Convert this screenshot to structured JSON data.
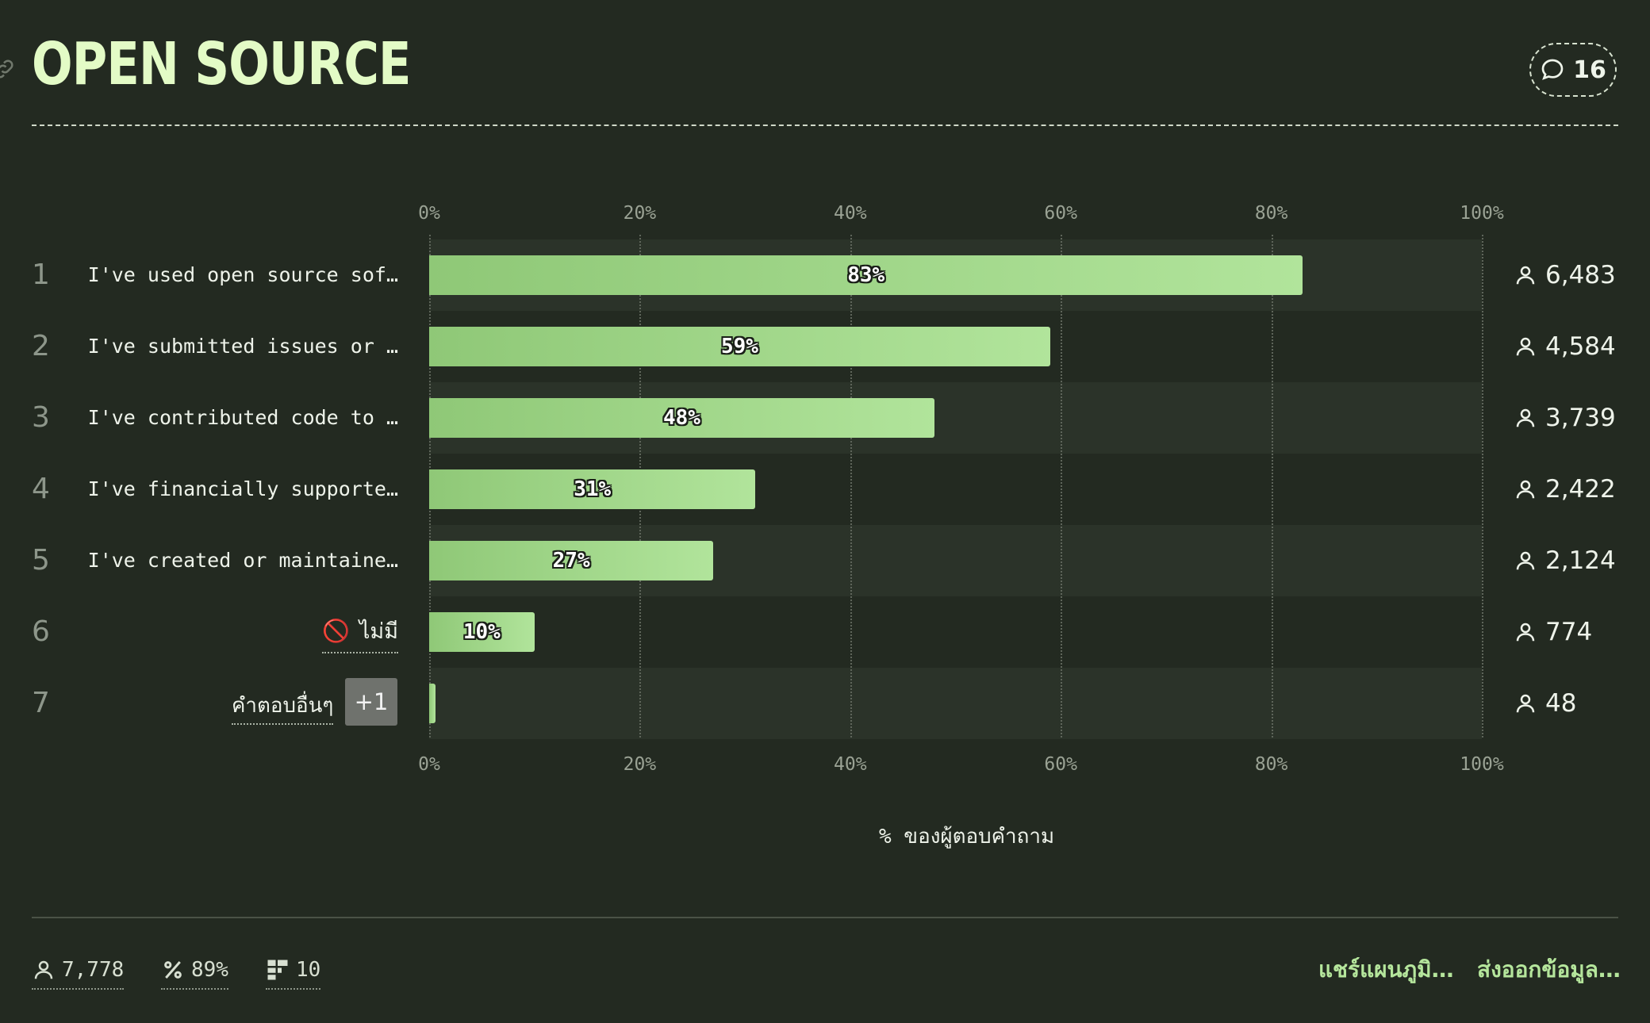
{
  "header": {
    "title": "OPEN SOURCE",
    "comment_count": "16"
  },
  "chart_data": {
    "type": "bar",
    "orientation": "horizontal",
    "categories": [
      "I've used open source sof…",
      "I've submitted issues or …",
      "I've contributed code to …",
      "I've financially supporte…",
      "I've created or maintaine…",
      "ไม่มี",
      "คำตอบอื่นๆ"
    ],
    "ranks": [
      "1",
      "2",
      "3",
      "4",
      "5",
      "6",
      "7"
    ],
    "values": [
      83,
      59,
      48,
      31,
      27,
      10,
      0.6
    ],
    "value_labels": [
      "83%",
      "59%",
      "48%",
      "31%",
      "27%",
      "10%",
      ""
    ],
    "counts": [
      "6,483",
      "4,584",
      "3,739",
      "2,422",
      "2,124",
      "774",
      "48"
    ],
    "xlabel": "% ของผู้ตอบคำถาม",
    "xlim": [
      0,
      100
    ],
    "x_ticks": [
      "0%",
      "20%",
      "40%",
      "60%",
      "80%",
      "100%"
    ],
    "grid": true,
    "other_badge": "+1"
  },
  "footer": {
    "respondents": "7,778",
    "percent": "89%",
    "questions": "10",
    "share_label": "แชร์แผนภูมิ…",
    "export_label": "ส่งออกข้อมูล…"
  },
  "colors": {
    "background": "#232a21",
    "bar_start": "#8fc877",
    "bar_end": "#b1e49b",
    "title": "#e3fbc6",
    "link": "#b5e69c"
  }
}
